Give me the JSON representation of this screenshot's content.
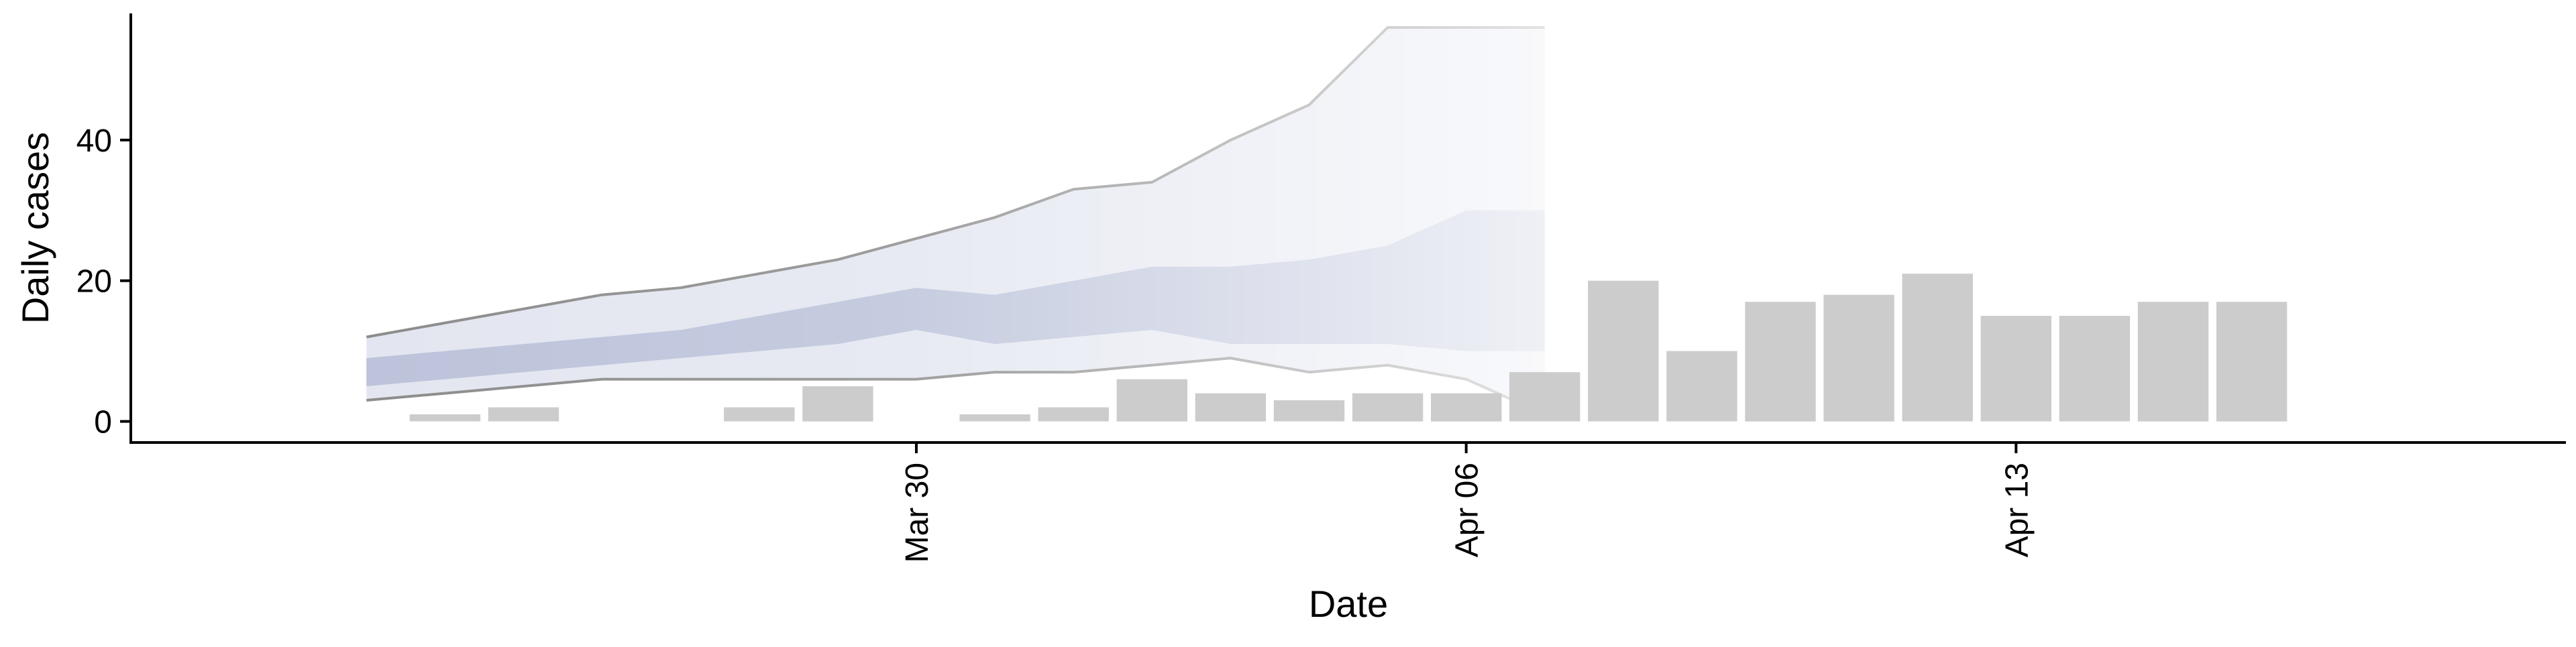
{
  "chart_data": {
    "type": "bar",
    "xlabel": "Date",
    "ylabel": "Daily cases",
    "ylim": [
      -3,
      58
    ],
    "xlim": [
      "2020-03-20",
      "2020-04-20"
    ],
    "y_ticks": [
      0,
      20,
      40
    ],
    "x_ticks": [
      {
        "date": "2020-03-30",
        "label": "Mar 30"
      },
      {
        "date": "2020-04-06",
        "label": "Apr 06"
      },
      {
        "date": "2020-04-13",
        "label": "Apr 13"
      }
    ],
    "grid": false,
    "legend": "none",
    "bars": {
      "name": "Observed daily cases",
      "color": "#cccccc",
      "points": [
        {
          "date": "2020-03-24",
          "value": 1
        },
        {
          "date": "2020-03-25",
          "value": 2
        },
        {
          "date": "2020-03-27",
          "value": 0
        },
        {
          "date": "2020-03-28",
          "value": 2
        },
        {
          "date": "2020-03-29",
          "value": 5
        },
        {
          "date": "2020-03-30",
          "value": 0
        },
        {
          "date": "2020-03-31",
          "value": 1
        },
        {
          "date": "2020-04-01",
          "value": 2
        },
        {
          "date": "2020-04-02",
          "value": 6
        },
        {
          "date": "2020-04-03",
          "value": 4
        },
        {
          "date": "2020-04-04",
          "value": 3
        },
        {
          "date": "2020-04-05",
          "value": 4
        },
        {
          "date": "2020-04-06",
          "value": 4
        },
        {
          "date": "2020-04-07",
          "value": 7
        },
        {
          "date": "2020-04-08",
          "value": 20
        },
        {
          "date": "2020-04-09",
          "value": 10
        },
        {
          "date": "2020-04-10",
          "value": 17
        },
        {
          "date": "2020-04-11",
          "value": 18
        },
        {
          "date": "2020-04-12",
          "value": 21
        },
        {
          "date": "2020-04-13",
          "value": 15
        },
        {
          "date": "2020-04-14",
          "value": 15
        },
        {
          "date": "2020-04-15",
          "value": 17
        },
        {
          "date": "2020-04-16",
          "value": 17
        }
      ]
    },
    "intervals": {
      "dates": [
        "2020-03-23",
        "2020-03-24",
        "2020-03-25",
        "2020-03-26",
        "2020-03-27",
        "2020-03-28",
        "2020-03-29",
        "2020-03-30",
        "2020-03-31",
        "2020-04-01",
        "2020-04-02",
        "2020-04-03",
        "2020-04-04",
        "2020-04-05",
        "2020-04-06",
        "2020-04-07"
      ],
      "outer_low": [
        3,
        4,
        5,
        6,
        6,
        6,
        6,
        6,
        7,
        7,
        8,
        9,
        7,
        8,
        6,
        1
      ],
      "outer_high": [
        12,
        14,
        16,
        18,
        19,
        21,
        23,
        26,
        29,
        33,
        34,
        40,
        45,
        56,
        56,
        56
      ],
      "inner_low": [
        5,
        6,
        7,
        8,
        9,
        10,
        11,
        13,
        11,
        12,
        13,
        11,
        11,
        11,
        10,
        10
      ],
      "inner_high": [
        9,
        10,
        11,
        12,
        13,
        15,
        17,
        19,
        18,
        20,
        22,
        22,
        23,
        25,
        30,
        30
      ],
      "outer_color": "#e3e6f0",
      "inner_color": "#bcc3da",
      "line_color": "#8c8c8c"
    }
  }
}
